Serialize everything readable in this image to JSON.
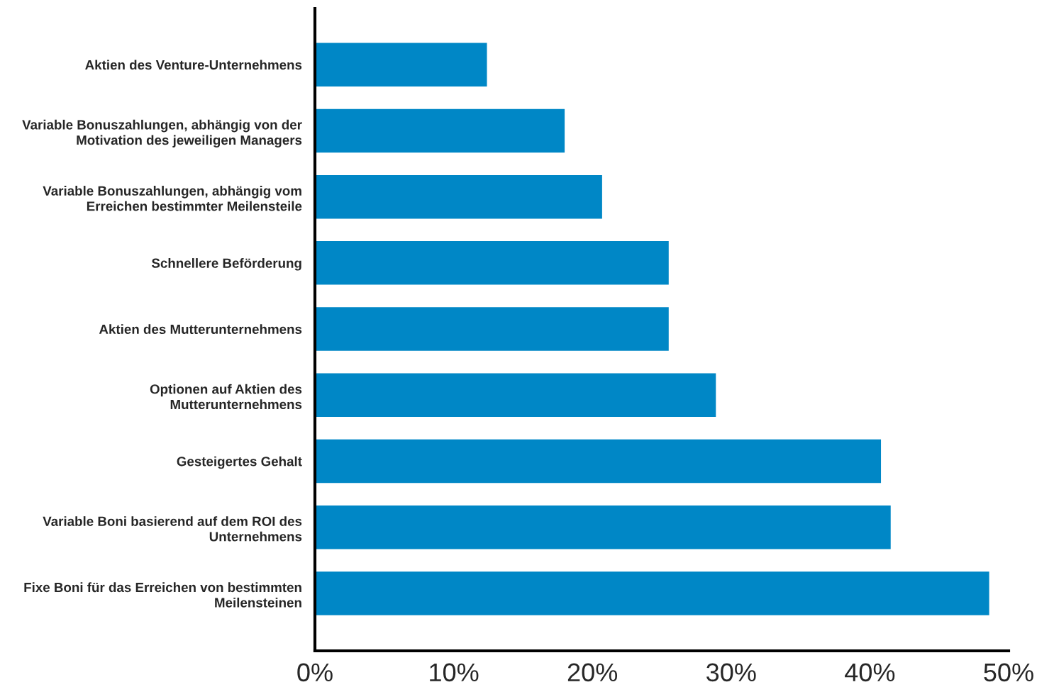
{
  "chart_data": {
    "type": "bar",
    "orientation": "horizontal",
    "categories": [
      "Aktien des Venture-Unternehmens",
      "Variable Bonuszahlungen, abhängig von der\nMotivation des jeweiligen Managers",
      "Variable Bonuszahlungen, abhängig vom\nErreichen bestimmter Meilensteile",
      "Schnellere Beförderung",
      "Aktien des Mutterunternehmens",
      "Optionen auf Aktien des\nMutterunternehmens",
      "Gesteigertes Gehalt",
      "Variable Boni basierend auf dem ROI des\nUnternehmens",
      "Fixe Boni für das Erreichen von bestimmten\nMeilensteinen"
    ],
    "values": [
      12.4,
      18.0,
      20.7,
      25.5,
      25.5,
      28.9,
      40.8,
      41.5,
      48.6
    ],
    "color": "#0087c6",
    "xlim": [
      0,
      50
    ],
    "xticks": [
      {
        "value": 0,
        "label": "0%"
      },
      {
        "value": 10,
        "label": "10%"
      },
      {
        "value": 20,
        "label": "20%"
      },
      {
        "value": 30,
        "label": "30%"
      },
      {
        "value": 40,
        "label": "40%"
      },
      {
        "value": 50,
        "label": "50%"
      }
    ]
  }
}
